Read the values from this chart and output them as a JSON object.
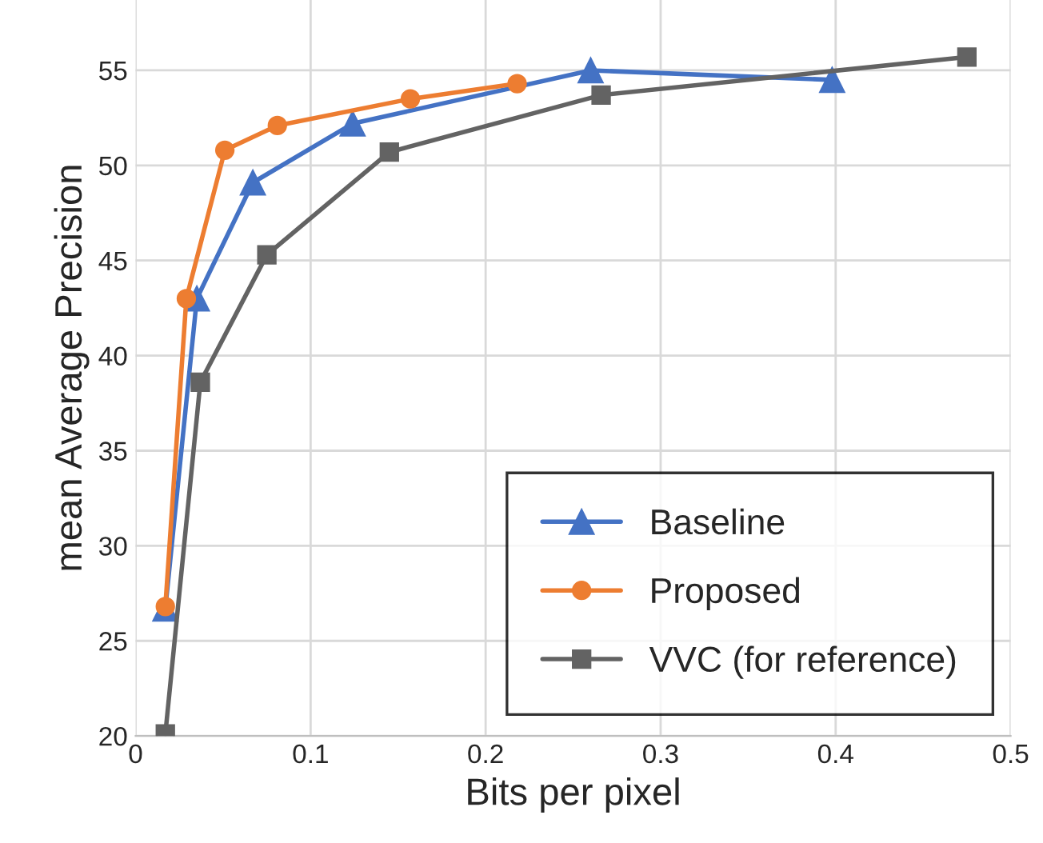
{
  "chart_data": {
    "type": "line",
    "xlabel": "Bits per pixel",
    "ylabel": "mean Average Precision",
    "xlim": [
      0,
      0.5
    ],
    "xticks": [
      0,
      0.1,
      0.2,
      0.3,
      0.4,
      0.5
    ],
    "ylim": [
      20,
      58.7
    ],
    "yticks": [
      20,
      25,
      30,
      35,
      40,
      45,
      50,
      55
    ],
    "grid": true,
    "legend": "bottom right",
    "series": [
      {
        "name": "Baseline",
        "color": "#4472c4",
        "marker": "triangle",
        "x": [
          0.017,
          0.035,
          0.067,
          0.124,
          0.26,
          0.398
        ],
        "values": [
          26.7,
          43.0,
          49.1,
          52.2,
          55.0,
          54.5
        ]
      },
      {
        "name": "Proposed",
        "color": "#ed7d31",
        "marker": "circle",
        "x": [
          0.017,
          0.029,
          0.051,
          0.081,
          0.157,
          0.218
        ],
        "values": [
          26.8,
          43.0,
          50.8,
          52.1,
          53.5,
          54.3
        ]
      },
      {
        "name": "VVC (for reference)",
        "color": "#636363",
        "marker": "square",
        "x": [
          0.017,
          0.037,
          0.075,
          0.145,
          0.266,
          0.475
        ],
        "values": [
          20.1,
          38.6,
          45.3,
          50.7,
          53.7,
          55.7
        ]
      }
    ]
  }
}
